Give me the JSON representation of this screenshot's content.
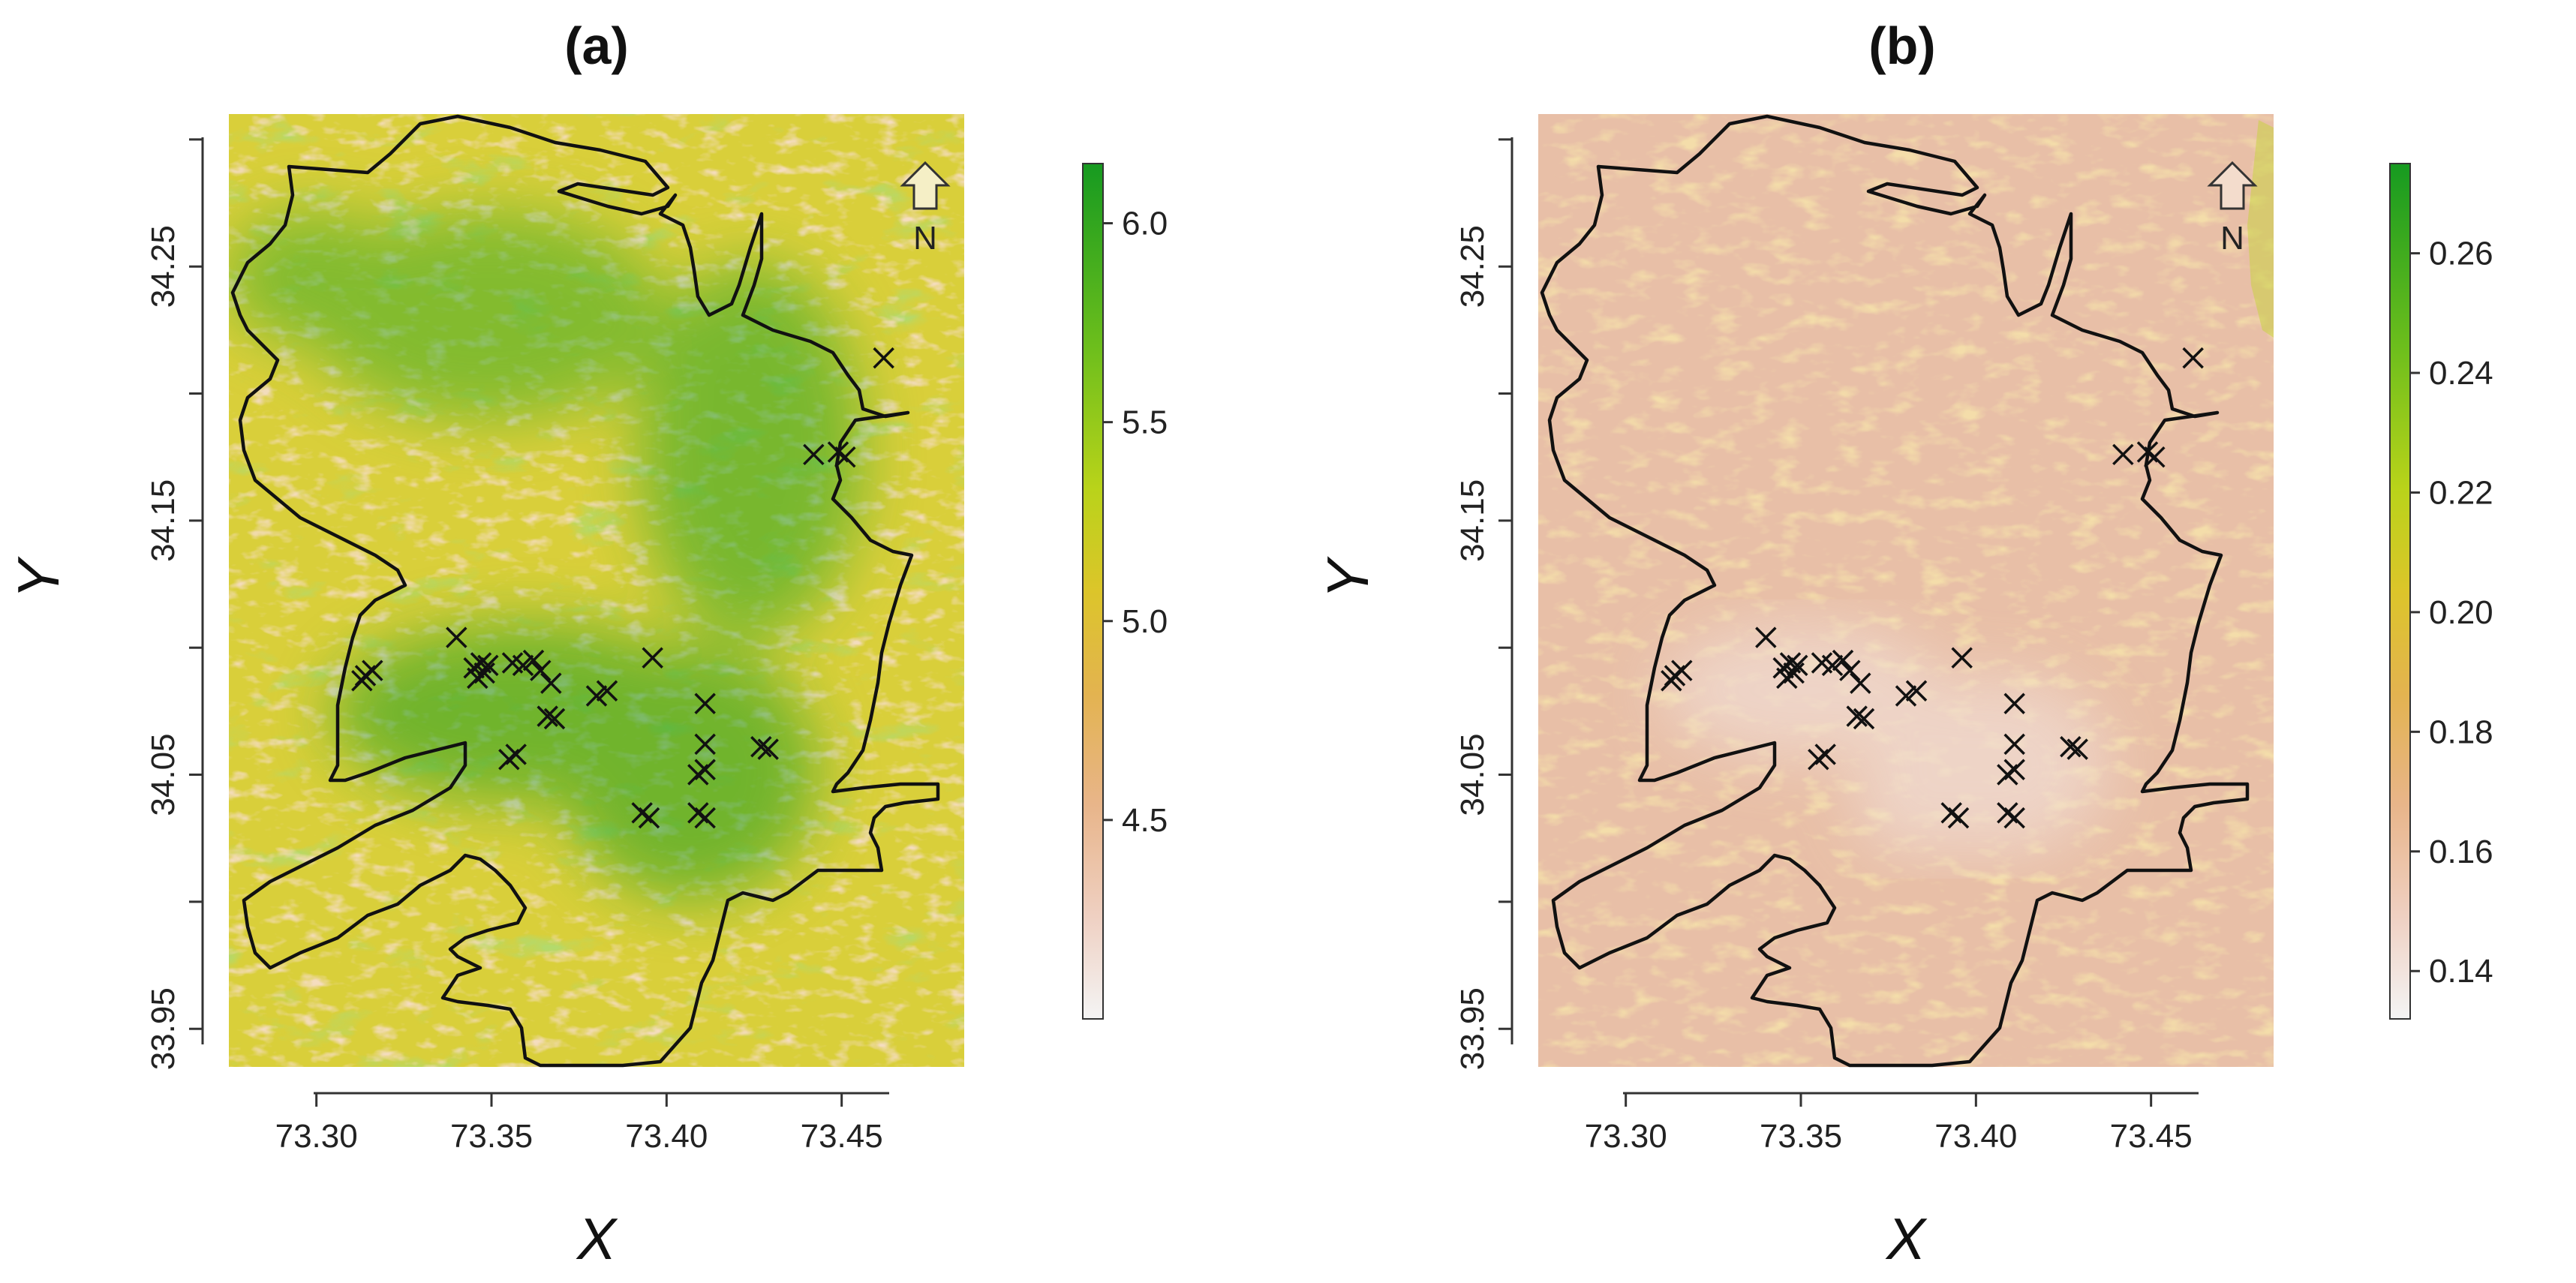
{
  "panels": [
    {
      "id": "a",
      "title": "(a)",
      "xlabel": "X",
      "ylabel": "Y",
      "x_ticks": [
        "73.30",
        "73.35",
        "73.40",
        "73.45"
      ],
      "y_ticks": [
        "33.95",
        "34.05",
        "34.15",
        "34.25"
      ],
      "legend_ticks": [
        "4.5",
        "5.0",
        "5.5",
        "6.0"
      ],
      "north_label": "N",
      "colors": {
        "high": "#1f9e22",
        "mid": "#b4d61a",
        "low_mid": "#e8c24a",
        "low": "#e8b890",
        "min": "#f2f2f2"
      }
    },
    {
      "id": "b",
      "title": "(b)",
      "xlabel": "X",
      "ylabel": "Y",
      "x_ticks": [
        "73.30",
        "73.35",
        "73.40",
        "73.45"
      ],
      "y_ticks": [
        "33.95",
        "34.05",
        "34.15",
        "34.25"
      ],
      "legend_ticks": [
        "0.14",
        "0.16",
        "0.18",
        "0.20",
        "0.22",
        "0.24",
        "0.26"
      ],
      "north_label": "N",
      "colors": {
        "high": "#1f9e22",
        "mid": "#b4d61a",
        "low_mid": "#e8c24a",
        "low": "#e8b890",
        "min": "#f2f2f2"
      }
    }
  ],
  "map_data": {
    "xlim": [
      73.275,
      73.485
    ],
    "ylim": [
      33.935,
      34.31
    ],
    "legend_a_range": [
      4.0,
      6.15
    ],
    "legend_b_range": [
      0.132,
      0.275
    ],
    "marker": "x",
    "points": [
      [
        73.314,
        34.089
      ],
      [
        73.313,
        34.087
      ],
      [
        73.316,
        34.091
      ],
      [
        73.34,
        34.104
      ],
      [
        73.345,
        34.092
      ],
      [
        73.347,
        34.094
      ],
      [
        73.348,
        34.09
      ],
      [
        73.349,
        34.093
      ],
      [
        73.346,
        34.088
      ],
      [
        73.356,
        34.094
      ],
      [
        73.359,
        34.093
      ],
      [
        73.362,
        34.095
      ],
      [
        73.364,
        34.091
      ],
      [
        73.367,
        34.086
      ],
      [
        73.366,
        34.073
      ],
      [
        73.368,
        34.072
      ],
      [
        73.355,
        34.056
      ],
      [
        73.357,
        34.058
      ],
      [
        73.38,
        34.081
      ],
      [
        73.383,
        34.083
      ],
      [
        73.396,
        34.096
      ],
      [
        73.411,
        34.078
      ],
      [
        73.411,
        34.062
      ],
      [
        73.409,
        34.05
      ],
      [
        73.411,
        34.052
      ],
      [
        73.427,
        34.061
      ],
      [
        73.429,
        34.06
      ],
      [
        73.395,
        34.033
      ],
      [
        73.393,
        34.035
      ],
      [
        73.409,
        34.035
      ],
      [
        73.411,
        34.033
      ],
      [
        73.442,
        34.176
      ],
      [
        73.451,
        34.175
      ],
      [
        73.449,
        34.177
      ],
      [
        73.462,
        34.214
      ]
    ]
  }
}
